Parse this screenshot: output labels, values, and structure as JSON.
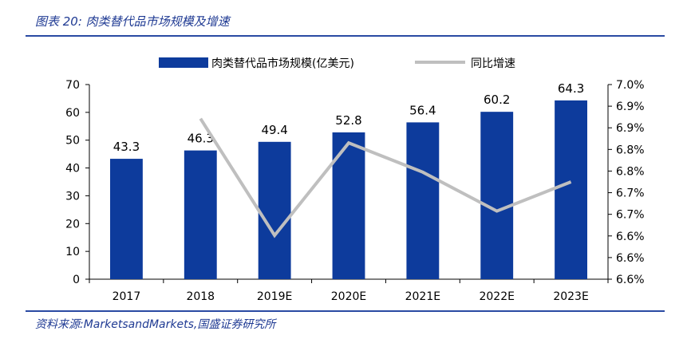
{
  "figure_title": "图表 20:  肉类替代品市场规模及增速",
  "source_note": "资料来源:MarketsandMarkets,国盛证券研究所",
  "colors": {
    "bar": "#0d3b9c",
    "line": "#bfbfbf",
    "accent": "#1f3a93",
    "axis": "#000000"
  },
  "chart_data": {
    "type": "bar",
    "categories": [
      "2017",
      "2018",
      "2019E",
      "2020E",
      "2021E",
      "2022E",
      "2023E"
    ],
    "series": [
      {
        "name": "肉类替代品市场规模(亿美元)",
        "type": "bar",
        "axis": "left",
        "values": [
          43.3,
          46.3,
          49.4,
          52.8,
          56.4,
          60.2,
          64.3
        ],
        "labels": [
          "43.3",
          "46.3",
          "49.4",
          "52.8",
          "56.4",
          "60.2",
          "64.3"
        ]
      },
      {
        "name": "同比增速",
        "type": "line",
        "axis": "right",
        "values": [
          null,
          6.93,
          6.69,
          6.88,
          6.82,
          6.74,
          6.8
        ]
      }
    ],
    "y_left": {
      "min": 0,
      "max": 70,
      "ticks": [
        0,
        10,
        20,
        30,
        40,
        50,
        60,
        70
      ],
      "tick_labels": [
        "0",
        "10",
        "20",
        "30",
        "40",
        "50",
        "60",
        "70"
      ]
    },
    "y_right": {
      "min": 6.6,
      "max": 7.0,
      "tick_labels": [
        "6.6%",
        "6.6%",
        "6.6%",
        "6.7%",
        "6.7%",
        "6.8%",
        "6.8%",
        "6.9%",
        "6.9%",
        "7.0%"
      ]
    },
    "title": "",
    "xlabel": "",
    "ylabel": "",
    "legend_position": "top-center",
    "grid": false
  }
}
